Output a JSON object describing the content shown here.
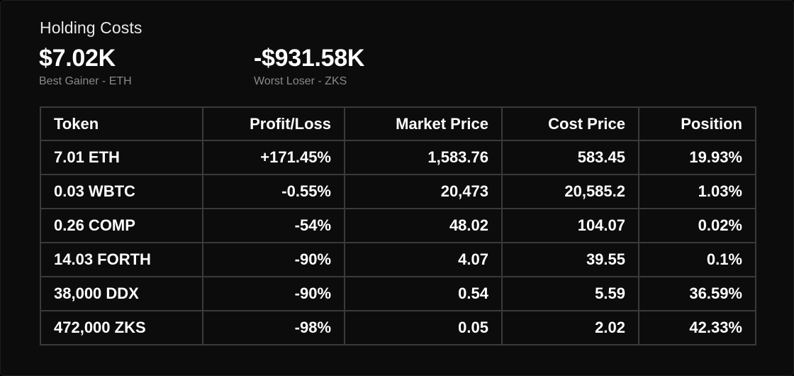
{
  "header": {
    "title": "Holding Costs"
  },
  "summary": {
    "best": {
      "value": "$7.02K",
      "label": "Best Gainer - ETH"
    },
    "worst": {
      "value": "-$931.58K",
      "label": "Worst Loser - ZKS"
    }
  },
  "table": {
    "columns": [
      "Token",
      "Profit/Loss",
      "Market Price",
      "Cost Price",
      "Position"
    ],
    "rows": [
      [
        "7.01 ETH",
        "+171.45%",
        "1,583.76",
        "583.45",
        "19.93%"
      ],
      [
        "0.03 WBTC",
        "-0.55%",
        "20,473",
        "20,585.2",
        "1.03%"
      ],
      [
        "0.26 COMP",
        "-54%",
        "48.02",
        "104.07",
        "0.02%"
      ],
      [
        "14.03 FORTH",
        "-90%",
        "4.07",
        "39.55",
        "0.1%"
      ],
      [
        "38,000 DDX",
        "-90%",
        "0.54",
        "5.59",
        "36.59%"
      ],
      [
        "472,000 ZKS",
        "-98%",
        "0.05",
        "2.02",
        "42.33%"
      ]
    ]
  }
}
